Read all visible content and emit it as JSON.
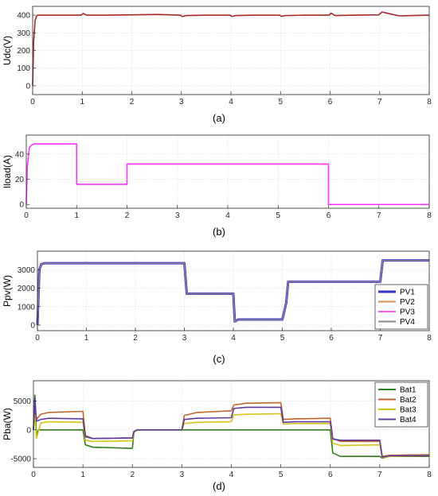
{
  "chart_data": [
    {
      "type": "line",
      "caption": "(a)",
      "ylabel": "Udc(V)",
      "xlabel": "",
      "xlim": [
        0,
        8
      ],
      "ylim": [
        -50,
        450
      ],
      "xticks": [
        0,
        1,
        2,
        3,
        4,
        5,
        6,
        7,
        8
      ],
      "yticks": [
        0,
        100,
        200,
        300,
        400
      ],
      "grid": true,
      "series": [
        {
          "color": "#a52a2a",
          "x": [
            0,
            0.02,
            0.05,
            0.08,
            0.1,
            0.5,
            0.98,
            1.02,
            1.08,
            1.5,
            2,
            2.5,
            2.98,
            3.02,
            3.1,
            3.5,
            3.98,
            4.02,
            4.1,
            4.5,
            4.98,
            5.02,
            5.1,
            5.5,
            5.98,
            6.02,
            6.1,
            6.5,
            6.98,
            7.05,
            7.2,
            7.4,
            8
          ],
          "y": [
            0,
            250,
            370,
            395,
            400,
            400,
            400,
            410,
            400,
            400,
            402,
            404,
            400,
            392,
            398,
            400,
            400,
            393,
            398,
            400,
            400,
            393,
            398,
            400,
            400,
            412,
            398,
            400,
            402,
            418,
            408,
            396,
            400
          ]
        }
      ]
    },
    {
      "type": "line",
      "caption": "(b)",
      "ylabel": "Iload(A)",
      "xlabel": "",
      "xlim": [
        0,
        8
      ],
      "ylim": [
        -3,
        55
      ],
      "xticks": [
        0,
        1,
        2,
        3,
        4,
        5,
        6,
        7,
        8
      ],
      "yticks": [
        0,
        20,
        40
      ],
      "grid": true,
      "series": [
        {
          "color": "#ff33ff",
          "x": [
            0,
            0.02,
            0.06,
            0.1,
            0.15,
            0.3,
            1,
            1.001,
            1.05,
            2,
            2.001,
            2.05,
            3,
            3.5,
            4,
            4.5,
            5,
            6,
            6.001,
            8
          ],
          "y": [
            0,
            30,
            45,
            47,
            48,
            48,
            48,
            16,
            16,
            16,
            32,
            32,
            32,
            32,
            32,
            32,
            32,
            32,
            0,
            0
          ]
        }
      ]
    },
    {
      "type": "line",
      "caption": "(c)",
      "ylabel": "Ppv(W)",
      "xlabel": "",
      "xlim": [
        0,
        8
      ],
      "ylim": [
        -300,
        4000
      ],
      "xticks": [
        0,
        1,
        2,
        3,
        4,
        5,
        6,
        7,
        8
      ],
      "yticks": [
        0,
        1000,
        2000,
        3000
      ],
      "grid": true,
      "legend": "bottom-right",
      "series": [
        {
          "name": "PV1",
          "color": "#3333cc",
          "width": 3,
          "x": [
            0,
            0.04,
            0.08,
            0.15,
            3,
            3.05,
            4,
            4.03,
            4.1,
            5,
            5.08,
            5.12,
            7,
            7.05,
            8
          ],
          "y": [
            0,
            3000,
            3300,
            3350,
            3350,
            1700,
            1700,
            200,
            300,
            300,
            1200,
            2350,
            2350,
            3500,
            3500
          ]
        },
        {
          "name": "PV2",
          "color": "#d98c5a",
          "width": 1.2,
          "x": [
            0,
            0.04,
            0.08,
            0.15,
            3,
            3.05,
            4,
            4.03,
            4.1,
            5,
            5.08,
            5.12,
            7,
            7.05,
            8
          ],
          "y": [
            0,
            3000,
            3300,
            3350,
            3350,
            1700,
            1700,
            200,
            300,
            300,
            1200,
            2350,
            2350,
            3500,
            3500
          ]
        },
        {
          "name": "PV3",
          "color": "#ff55ff",
          "width": 1.2,
          "x": [
            0,
            0.04,
            0.08,
            0.15,
            3,
            3.05,
            4,
            4.03,
            4.1,
            5,
            5.08,
            5.12,
            7,
            7.05,
            8
          ],
          "y": [
            0,
            3000,
            3300,
            3350,
            3350,
            1700,
            1700,
            200,
            300,
            300,
            1200,
            2350,
            2350,
            3500,
            3500
          ]
        },
        {
          "name": "PV4",
          "color": "#888888",
          "width": 1.2,
          "x": [
            0,
            0.04,
            0.08,
            0.15,
            3,
            3.05,
            4,
            4.03,
            4.1,
            5,
            5.08,
            5.12,
            7,
            7.05,
            8
          ],
          "y": [
            0,
            3000,
            3300,
            3350,
            3350,
            1700,
            1700,
            200,
            300,
            300,
            1200,
            2350,
            2350,
            3500,
            3500
          ]
        }
      ]
    },
    {
      "type": "line",
      "caption": "(d)",
      "ylabel": "Pba(W)",
      "xlabel": "",
      "xlim": [
        0,
        8
      ],
      "ylim": [
        -6500,
        8500
      ],
      "xticks": [
        0,
        1,
        2,
        3,
        4,
        5,
        6,
        7,
        8
      ],
      "yticks": [
        -5000,
        0,
        5000
      ],
      "grid": true,
      "legend": "top-right",
      "series": [
        {
          "name": "Bat1",
          "color": "#2e7d1a",
          "x": [
            0,
            0.03,
            0.06,
            0.1,
            1,
            1.05,
            1.2,
            2,
            2.03,
            2.1,
            3,
            4,
            5,
            6,
            6.05,
            6.2,
            7,
            7.05,
            7.2,
            8
          ],
          "y": [
            0,
            6000,
            -1000,
            0,
            0,
            -2600,
            -3000,
            -3200,
            -400,
            0,
            0,
            0,
            0,
            0,
            -4000,
            -4600,
            -4600,
            -4900,
            -4600,
            -4600
          ]
        },
        {
          "name": "Bat2",
          "color": "#c0652b",
          "x": [
            0,
            0.03,
            0.06,
            0.15,
            0.3,
            1,
            1.05,
            1.2,
            2,
            2.03,
            2.1,
            3,
            3.05,
            3.3,
            4,
            4.05,
            4.3,
            5,
            5.05,
            5.3,
            6,
            6.05,
            6.2,
            7,
            7.05,
            7.2,
            8
          ],
          "y": [
            0,
            4200,
            1800,
            2700,
            3000,
            3200,
            -1000,
            -1500,
            -1400,
            -300,
            0,
            0,
            2500,
            3000,
            3300,
            4300,
            4600,
            4700,
            1800,
            1900,
            2000,
            -1500,
            -2000,
            -2000,
            -4600,
            -4400,
            -4300
          ]
        },
        {
          "name": "Bat3",
          "color": "#d4c417",
          "x": [
            0,
            0.03,
            0.06,
            0.15,
            0.3,
            1,
            1.05,
            1.2,
            2,
            2.03,
            2.1,
            3,
            3.05,
            3.3,
            4,
            4.05,
            4.3,
            5,
            5.05,
            5.3,
            6,
            6.05,
            6.2,
            7,
            7.05,
            7.2,
            8
          ],
          "y": [
            0,
            2500,
            -1500,
            1200,
            1400,
            1300,
            -1800,
            -2000,
            -1900,
            -300,
            0,
            0,
            1100,
            1300,
            1400,
            2600,
            2700,
            2800,
            1000,
            1100,
            1100,
            -2300,
            -2700,
            -2600,
            -4800,
            -4600,
            -4500
          ]
        },
        {
          "name": "Bat4",
          "color": "#5c3a9e",
          "x": [
            0,
            0.03,
            0.06,
            0.15,
            0.3,
            1,
            1.05,
            1.2,
            2,
            2.03,
            2.1,
            3,
            3.05,
            3.3,
            4,
            4.05,
            4.3,
            5,
            5.05,
            5.3,
            6,
            6.05,
            6.2,
            7,
            7.05,
            7.2,
            8
          ],
          "y": [
            0,
            5500,
            1500,
            1800,
            2000,
            1900,
            -1200,
            -1500,
            -1400,
            -300,
            0,
            0,
            1800,
            2000,
            2100,
            3700,
            3900,
            3900,
            1300,
            1400,
            1400,
            -1600,
            -1800,
            -1800,
            -4700,
            -4500,
            -4500
          ]
        }
      ]
    }
  ]
}
